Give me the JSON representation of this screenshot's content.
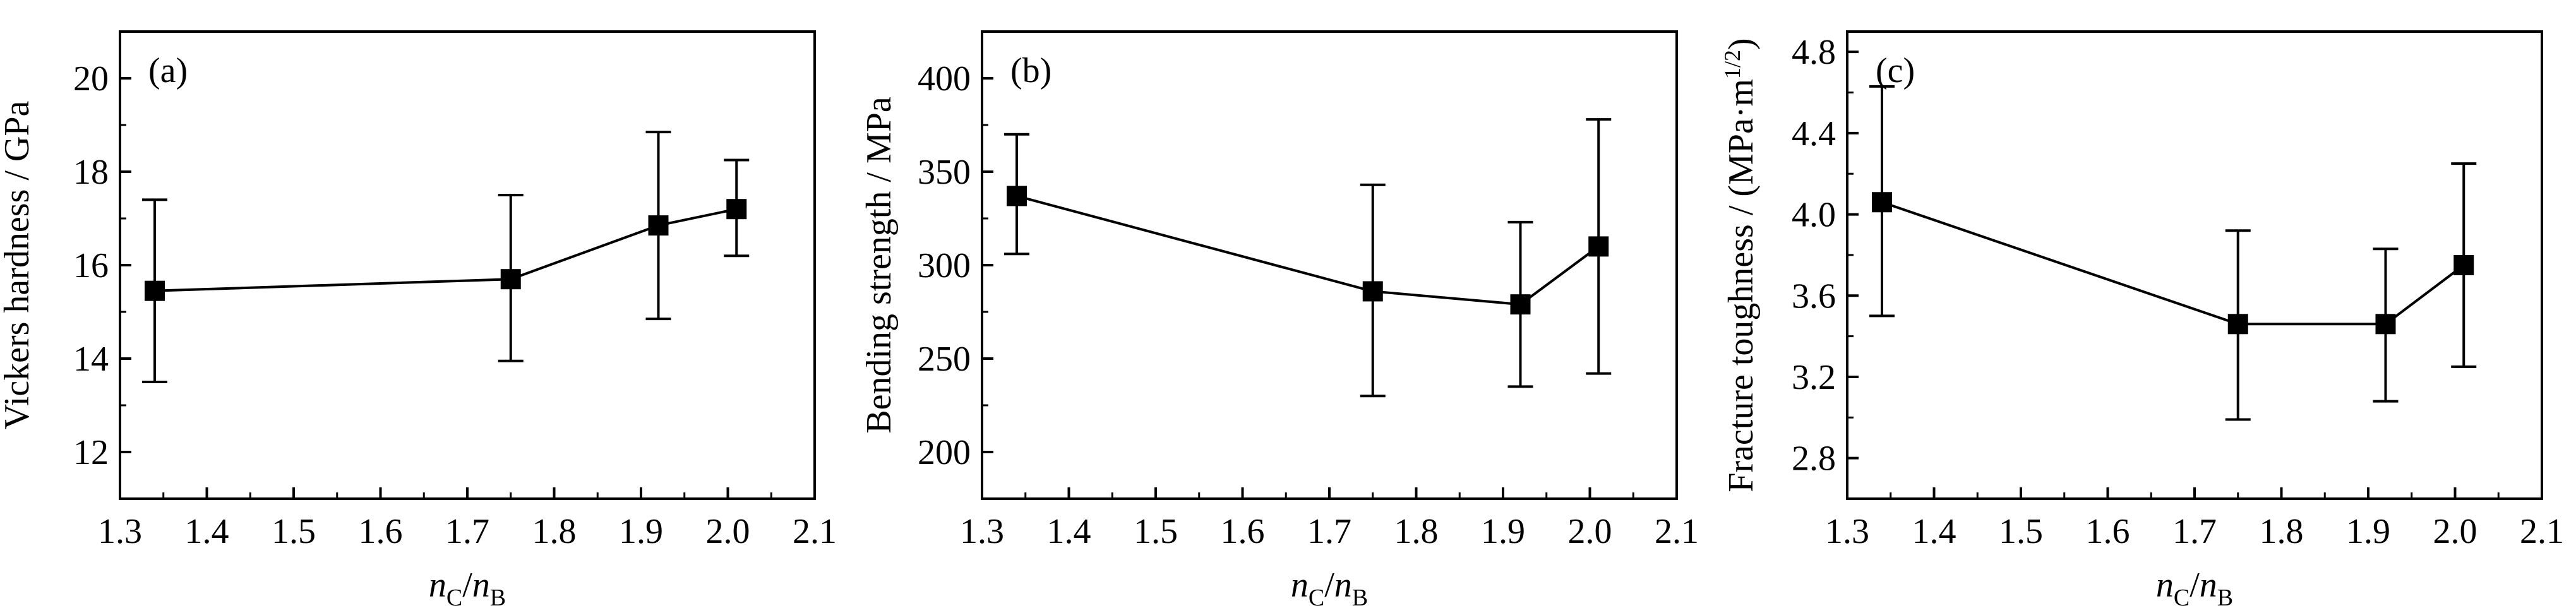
{
  "chart_data": [
    {
      "type": "line",
      "panel_label": "(a)",
      "ylabel": "Vickers hardness / GPa",
      "xlabel": {
        "n1": "n",
        "sub1": "C",
        "slash": "/",
        "n2": "n",
        "sub2": "B"
      },
      "xlim": [
        1.3,
        2.1
      ],
      "ylim": [
        11,
        21
      ],
      "xticks": [
        1.3,
        1.4,
        1.5,
        1.6,
        1.7,
        1.8,
        1.9,
        2.0,
        2.1
      ],
      "xtick_labels": [
        "1.3",
        "1.4",
        "1.5",
        "1.6",
        "1.7",
        "1.8",
        "1.9",
        "2.0",
        "2.1"
      ],
      "yticks": [
        12,
        14,
        16,
        18,
        20
      ],
      "ytick_labels": [
        "12",
        "14",
        "16",
        "18",
        "20"
      ],
      "x": [
        1.34,
        1.75,
        1.92,
        2.01
      ],
      "y": [
        15.45,
        15.7,
        16.85,
        17.2
      ],
      "yerr_low": [
        13.5,
        13.95,
        14.85,
        16.2
      ],
      "yerr_high": [
        17.4,
        17.5,
        18.85,
        18.25
      ],
      "marker": "square",
      "color": "#000000"
    },
    {
      "type": "line",
      "panel_label": "(b)",
      "ylabel": "Bending strength / MPa",
      "xlabel": {
        "n1": "n",
        "sub1": "C",
        "slash": "/",
        "n2": "n",
        "sub2": "B"
      },
      "xlim": [
        1.3,
        2.1
      ],
      "ylim": [
        175,
        425
      ],
      "xticks": [
        1.3,
        1.4,
        1.5,
        1.6,
        1.7,
        1.8,
        1.9,
        2.0,
        2.1
      ],
      "xtick_labels": [
        "1.3",
        "1.4",
        "1.5",
        "1.6",
        "1.7",
        "1.8",
        "1.9",
        "2.0",
        "2.1"
      ],
      "yticks": [
        200,
        250,
        300,
        350,
        400
      ],
      "ytick_labels": [
        "200",
        "250",
        "300",
        "350",
        "400"
      ],
      "x": [
        1.34,
        1.75,
        1.92,
        2.01
      ],
      "y": [
        337,
        286,
        279,
        310
      ],
      "yerr_low": [
        306,
        230,
        235,
        242
      ],
      "yerr_high": [
        370,
        343,
        323,
        378
      ],
      "marker": "square",
      "color": "#000000"
    },
    {
      "type": "line",
      "panel_label": "(c)",
      "ylabel": {
        "text": "Fracture toughness / (MPa·m",
        "sup": "1/2",
        "close": ")"
      },
      "xlabel": {
        "n1": "n",
        "sub1": "C",
        "slash": "/",
        "n2": "n",
        "sub2": "B"
      },
      "xlim": [
        1.3,
        2.1
      ],
      "ylim": [
        2.6,
        4.9
      ],
      "xticks": [
        1.3,
        1.4,
        1.5,
        1.6,
        1.7,
        1.8,
        1.9,
        2.0,
        2.1
      ],
      "xtick_labels": [
        "1.3",
        "1.4",
        "1.5",
        "1.6",
        "1.7",
        "1.8",
        "1.9",
        "2.0",
        "2.1"
      ],
      "yticks": [
        2.8,
        3.2,
        3.6,
        4.0,
        4.4,
        4.8
      ],
      "ytick_labels": [
        "2.8",
        "3.2",
        "3.6",
        "4.0",
        "4.4",
        "4.8"
      ],
      "x": [
        1.34,
        1.75,
        1.92,
        2.01
      ],
      "y": [
        4.06,
        3.46,
        3.46,
        3.75
      ],
      "yerr_low": [
        3.5,
        2.99,
        3.08,
        3.25
      ],
      "yerr_high": [
        4.63,
        3.92,
        3.83,
        4.25
      ],
      "marker": "square",
      "color": "#000000"
    }
  ]
}
